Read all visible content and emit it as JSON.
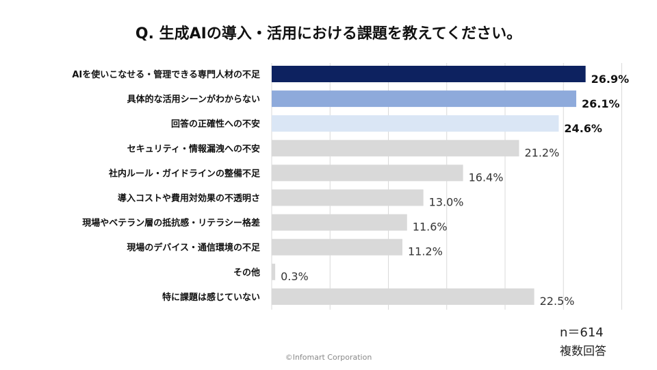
{
  "title": "Q. 生成AIの導入・活用における課題を教えてください。",
  "sample_size": "n＝614",
  "note": "複数回答",
  "copyright": "©Infomart Corporation",
  "colors": {
    "rank1": "#0d2260",
    "rank2": "#8eaadb",
    "rank3": "#dae6f5",
    "other": "#d9d9d9",
    "grid": "#d9d9d9",
    "label_text": "#111111",
    "value_text": "#333333"
  },
  "chart_data": {
    "type": "bar",
    "orientation": "horizontal",
    "categories": [
      "AIを使いこなせる・管理できる専門人材の不足",
      "具体的な活用シーンがわからない",
      "回答の正確性への不安",
      "セキュリティ・情報漏洩への不安",
      "社内ルール・ガイドラインの整備不足",
      "導入コストや費用対効果の不透明さ",
      "現場やベテラン層の抵抗感・リテラシー格差",
      "現場のデバイス・通信環境の不足",
      "その他",
      "特に課題は感じていない"
    ],
    "values": [
      26.9,
      26.1,
      24.6,
      21.2,
      16.4,
      13.0,
      11.6,
      11.2,
      0.3,
      22.5
    ],
    "value_labels": [
      "26.9%",
      "26.1%",
      "24.6%",
      "21.2%",
      "16.4%",
      "13.0%",
      "11.6%",
      "11.2%",
      "0.3%",
      "22.5%"
    ],
    "highlight_top": 3,
    "xlim": [
      0,
      30
    ],
    "grid": true,
    "legend": false
  }
}
